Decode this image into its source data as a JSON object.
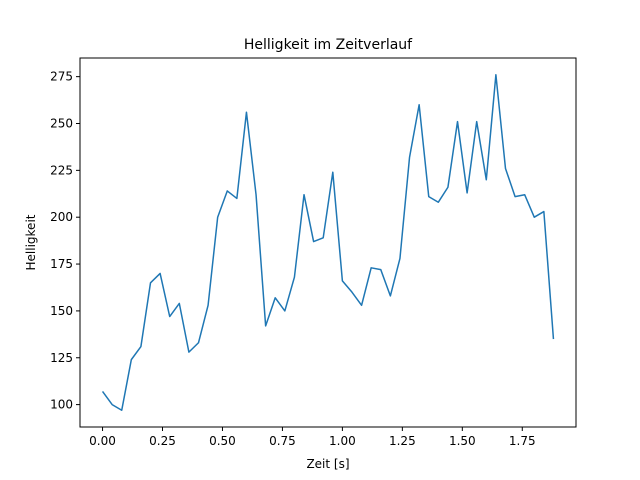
{
  "chart_data": {
    "type": "line",
    "title": "Helligkeit im Zeitverlauf",
    "xlabel": "Zeit [s]",
    "ylabel": "Helligkeit",
    "xlim": [
      -0.094,
      1.974
    ],
    "ylim": [
      88.05,
      284.95
    ],
    "grid": false,
    "xticks": [
      0.0,
      0.25,
      0.5,
      0.75,
      1.0,
      1.25,
      1.5,
      1.75
    ],
    "xtick_labels": [
      "0.00",
      "0.25",
      "0.50",
      "0.75",
      "1.00",
      "1.25",
      "1.50",
      "1.75"
    ],
    "yticks": [
      100,
      125,
      150,
      175,
      200,
      225,
      250,
      275
    ],
    "ytick_labels": [
      "100",
      "125",
      "150",
      "175",
      "200",
      "225",
      "250",
      "275"
    ],
    "series": [
      {
        "name": "Helligkeit",
        "color": "#1f77b4",
        "x": [
          0.0,
          0.04,
          0.08,
          0.12,
          0.16,
          0.2,
          0.24,
          0.28,
          0.32,
          0.36,
          0.4,
          0.44,
          0.48,
          0.52,
          0.56,
          0.6,
          0.64,
          0.68,
          0.72,
          0.76,
          0.8,
          0.84,
          0.88,
          0.92,
          0.96,
          1.0,
          1.04,
          1.08,
          1.12,
          1.16,
          1.2,
          1.24,
          1.28,
          1.32,
          1.36,
          1.4,
          1.44,
          1.48,
          1.52,
          1.56,
          1.6,
          1.64,
          1.68,
          1.72,
          1.76,
          1.8,
          1.84,
          1.88
        ],
        "values": [
          107,
          100,
          97,
          124,
          131,
          165,
          170,
          147,
          154,
          128,
          133,
          153,
          200,
          214,
          210,
          256,
          212,
          142,
          157,
          150,
          168,
          212,
          187,
          189,
          224,
          166,
          160,
          153,
          173,
          172,
          158,
          178,
          232,
          260,
          211,
          208,
          216,
          251,
          213,
          251,
          220,
          276,
          226,
          211,
          212,
          200,
          203,
          135
        ]
      }
    ]
  }
}
